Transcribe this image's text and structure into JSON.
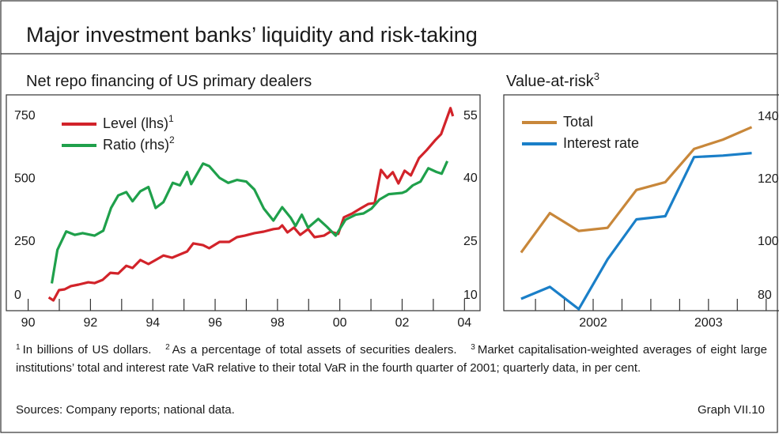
{
  "header": {
    "title": "Major investment banks’ liquidity and risk-taking"
  },
  "chart_data": [
    {
      "type": "line",
      "title": "Net repo financing of US primary dealers",
      "xlim": [
        1989.3,
        2004.5
      ],
      "xticks": [
        {
          "value": 1990,
          "label": "90"
        },
        {
          "value": 1992,
          "label": "92"
        },
        {
          "value": 1994,
          "label": "94"
        },
        {
          "value": 1996,
          "label": "96"
        },
        {
          "value": 1998,
          "label": "98"
        },
        {
          "value": 2000,
          "label": "00"
        },
        {
          "value": 2002,
          "label": "02"
        },
        {
          "value": 2004,
          "label": "04"
        }
      ],
      "minor_xticks": [
        1990,
        1991,
        1992,
        1993,
        1994,
        1995,
        1996,
        1997,
        1998,
        1999,
        2000,
        2001,
        2002,
        2003,
        2004
      ],
      "ylim": [
        -25,
        835
      ],
      "yticks": [
        0,
        250,
        500,
        750
      ],
      "y2lim": [
        8.5,
        60
      ],
      "y2ticks": [
        10,
        25,
        40,
        55
      ],
      "legend": "upper left",
      "series": [
        {
          "name": "Level (lhs)",
          "note": "1",
          "color": "#d2232a",
          "x": [
            1990.66,
            1990.81,
            1990.99,
            1991.17,
            1991.37,
            1991.62,
            1991.93,
            1992.13,
            1992.39,
            1992.64,
            1992.89,
            1993.15,
            1993.35,
            1993.6,
            1993.86,
            1994.09,
            1994.34,
            1994.62,
            1994.87,
            1995.1,
            1995.3,
            1995.61,
            1995.81,
            1996.14,
            1996.45,
            1996.7,
            1996.95,
            1997.26,
            1997.56,
            1997.87,
            1998.05,
            1998.15,
            1998.32,
            1998.53,
            1998.73,
            1998.98,
            1999.19,
            1999.49,
            1999.7,
            1999.95,
            2000.13,
            2000.41,
            2000.66,
            2000.91,
            2001.12,
            2001.32,
            2001.52,
            2001.7,
            2001.88,
            2002.08,
            2002.28,
            2002.54,
            2002.79,
            2003.05,
            2003.25,
            2003.45,
            2003.55,
            2003.63
          ],
          "values": [
            28,
            16,
            57,
            60,
            73,
            79,
            88,
            85,
            98,
            126,
            123,
            154,
            145,
            177,
            161,
            177,
            195,
            186,
            199,
            211,
            243,
            236,
            224,
            249,
            249,
            268,
            274,
            284,
            290,
            300,
            303,
            315,
            287,
            306,
            277,
            300,
            268,
            274,
            290,
            281,
            347,
            363,
            382,
            400,
            404,
            536,
            504,
            527,
            482,
            533,
            514,
            583,
            615,
            653,
            678,
            747,
            782,
            750
          ]
        },
        {
          "name": "Ratio (rhs)",
          "note": "2",
          "color": "#1fa04b",
          "axis": "y2",
          "x": [
            1990.76,
            1990.94,
            1991.22,
            1991.5,
            1991.75,
            1992.13,
            1992.41,
            1992.66,
            1992.89,
            1993.15,
            1993.35,
            1993.6,
            1993.86,
            1994.09,
            1994.34,
            1994.64,
            1994.87,
            1995.1,
            1995.23,
            1995.61,
            1995.81,
            1996.14,
            1996.42,
            1996.7,
            1997.0,
            1997.26,
            1997.56,
            1997.87,
            1998.15,
            1998.43,
            1998.58,
            1998.78,
            1998.98,
            1999.31,
            1999.59,
            1999.87,
            2000.18,
            2000.51,
            2000.76,
            2001.02,
            2001.27,
            2001.57,
            2002.0,
            2002.13,
            2002.34,
            2002.59,
            2002.84,
            2003.1,
            2003.27,
            2003.45
          ],
          "values": [
            15,
            23,
            27.4,
            26.6,
            27,
            26.4,
            27.6,
            33,
            36,
            36.8,
            34.6,
            37,
            38,
            33,
            34.4,
            39,
            38.4,
            41.6,
            38.7,
            43.6,
            43,
            40.2,
            39,
            39.7,
            39.3,
            37.4,
            32.9,
            30,
            33.2,
            30.6,
            28.7,
            31.4,
            28.3,
            30.4,
            28.5,
            26.4,
            30.2,
            31.4,
            31.7,
            32.9,
            35,
            36.3,
            36.6,
            37,
            38.4,
            39.3,
            42.5,
            41.6,
            41.2,
            44.2
          ]
        }
      ]
    },
    {
      "type": "line",
      "title": "Value-at-risk",
      "title_note": "3",
      "xlim": [
        2001.725,
        2004.18
      ],
      "xticks": [
        {
          "value": 2002.5,
          "label": "2002"
        },
        {
          "value": 2003.5,
          "label": "2003"
        }
      ],
      "minor_xticks": [
        2002,
        2002.25,
        2002.5,
        2002.75,
        2003,
        2003.25,
        2003.5,
        2003.75,
        2004
      ],
      "ylim": [
        78,
        147
      ],
      "yticks": [
        80,
        100,
        120,
        140
      ],
      "legend": "upper left",
      "series": [
        {
          "name": "Total",
          "color": "#c8873a",
          "x": [
            2001.875,
            2002.125,
            2002.375,
            2002.625,
            2002.875,
            2003.125,
            2003.375,
            2003.625,
            2003.875
          ],
          "values": [
            96.6,
            109.2,
            103.5,
            104.5,
            116.6,
            119.1,
            129.7,
            132.7,
            136.7
          ]
        },
        {
          "name": "Interest rate",
          "color": "#1a7fc8",
          "x": [
            2001.875,
            2002.125,
            2002.375,
            2002.625,
            2002.875,
            2003.125,
            2003.375,
            2003.625,
            2003.875
          ],
          "values": [
            81.8,
            85.6,
            78.5,
            94.4,
            107.2,
            108.2,
            127.1,
            127.6,
            128.4
          ]
        }
      ]
    }
  ],
  "footer": {
    "notes": [
      {
        "marker": "1",
        "text": "In billions of US dollars."
      },
      {
        "marker": "2",
        "text": "As a percentage of total assets of securities dealers."
      },
      {
        "marker": "3",
        "text": "Market capitalisation-weighted averages of eight large institutions’ total and interest rate VaR relative to their total VaR in the fourth quarter of 2001; quarterly data, in per cent."
      }
    ],
    "sources": "Sources: Company reports; national data.",
    "graph_id": "Graph VII.10"
  }
}
